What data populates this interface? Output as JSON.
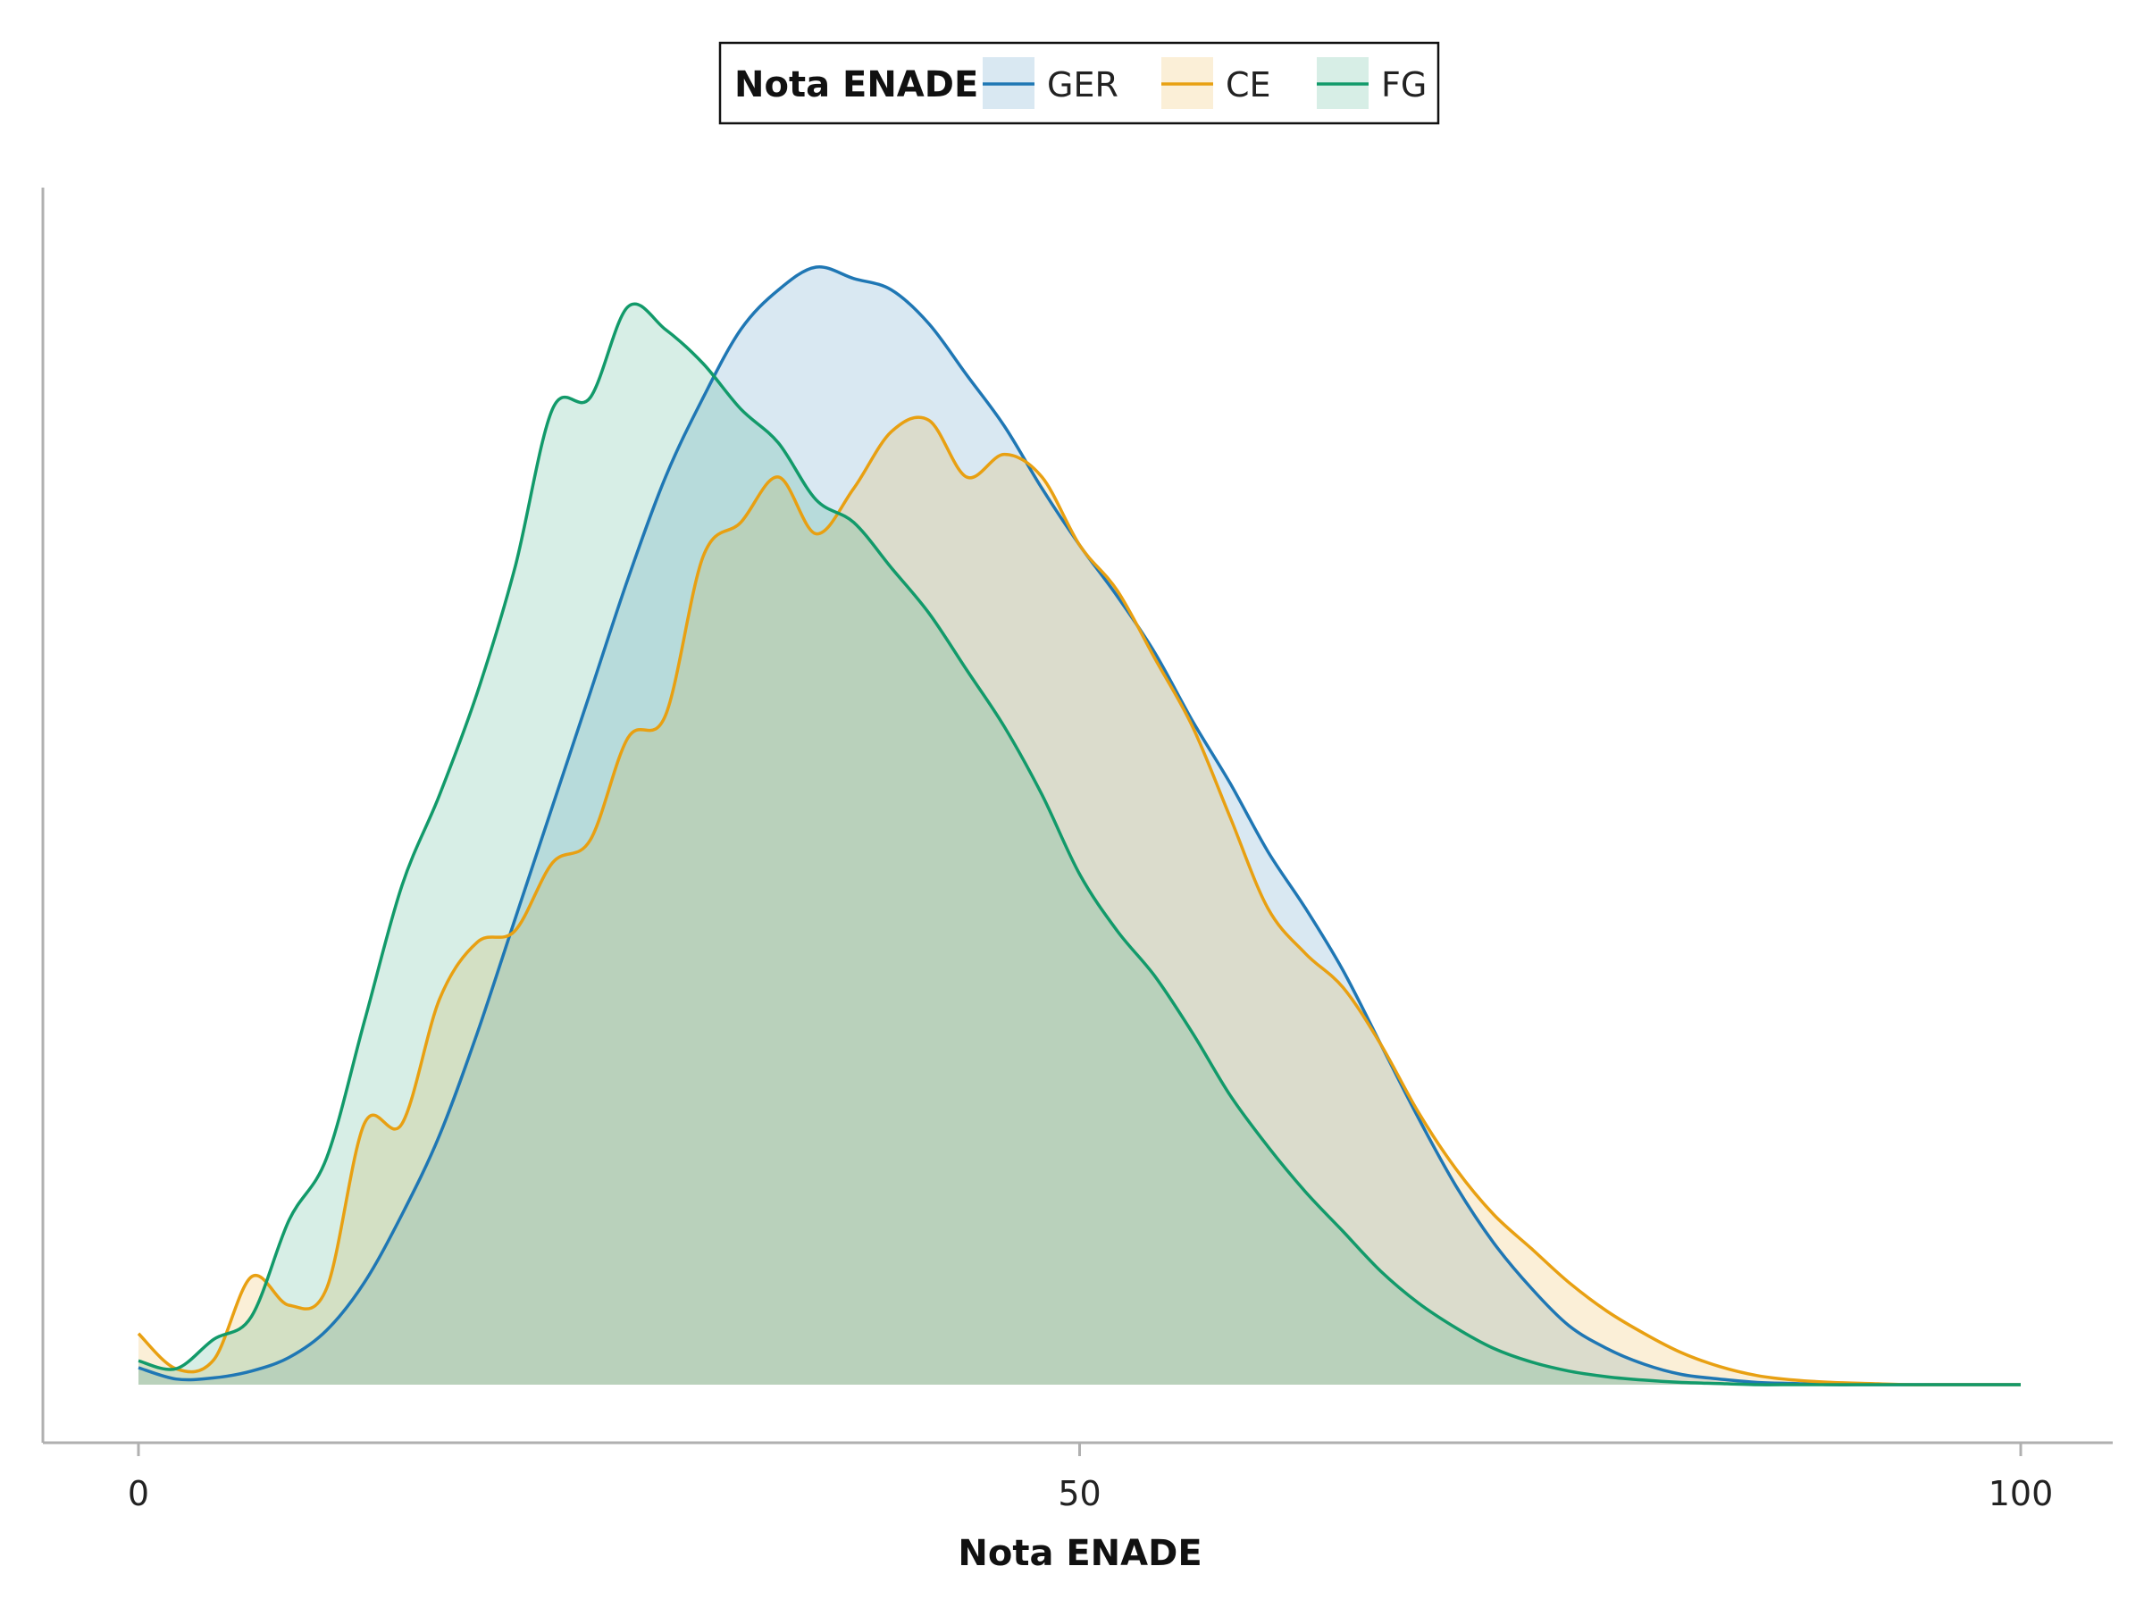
{
  "chart_data": {
    "type": "area",
    "title": "",
    "xlabel": "Nota ENADE",
    "ylabel": "",
    "xlim": [
      0,
      100
    ],
    "xticks": [
      0,
      50,
      100
    ],
    "ylim": [
      0,
      1.0
    ],
    "grid": false,
    "legend": {
      "title": "Nota ENADE",
      "position": "top-center"
    },
    "series": [
      {
        "name": "GER",
        "color": "#1f77b4",
        "fill": "rgba(31,119,180,0.17)",
        "fill_opacity": 0.17,
        "x": [
          0,
          2,
          4,
          6,
          8,
          10,
          12,
          14,
          16,
          18,
          20,
          22,
          24,
          26,
          28,
          30,
          32,
          34,
          36,
          38,
          40,
          42,
          44,
          46,
          48,
          50,
          52,
          54,
          56,
          58,
          60,
          62,
          64,
          66,
          68,
          70,
          72,
          74,
          76,
          78,
          80,
          82,
          84,
          86,
          88,
          90,
          92,
          94,
          96,
          98,
          100
        ],
        "y": [
          0.015,
          0.005,
          0.006,
          0.012,
          0.024,
          0.048,
          0.09,
          0.15,
          0.22,
          0.31,
          0.41,
          0.51,
          0.61,
          0.71,
          0.8,
          0.87,
          0.93,
          0.965,
          0.985,
          0.975,
          0.965,
          0.935,
          0.89,
          0.845,
          0.79,
          0.74,
          0.695,
          0.645,
          0.585,
          0.53,
          0.47,
          0.42,
          0.365,
          0.3,
          0.235,
          0.175,
          0.125,
          0.085,
          0.052,
          0.032,
          0.018,
          0.009,
          0.005,
          0.002,
          0.001,
          0.0,
          0.0,
          0.0,
          0.0,
          0.0,
          0.0
        ]
      },
      {
        "name": "CE",
        "color": "#e8a012",
        "fill": "rgba(232,160,18,0.17)",
        "fill_opacity": 0.17,
        "x": [
          0,
          2,
          4,
          6,
          8,
          10,
          12,
          14,
          16,
          18,
          20,
          22,
          24,
          26,
          28,
          30,
          32,
          34,
          36,
          38,
          40,
          42,
          44,
          46,
          48,
          50,
          52,
          54,
          56,
          58,
          60,
          62,
          64,
          66,
          68,
          70,
          72,
          74,
          76,
          78,
          80,
          82,
          84,
          86,
          88,
          90,
          92,
          94,
          96,
          98,
          100
        ],
        "y": [
          0.045,
          0.014,
          0.022,
          0.095,
          0.07,
          0.085,
          0.23,
          0.23,
          0.34,
          0.39,
          0.4,
          0.46,
          0.48,
          0.57,
          0.59,
          0.73,
          0.76,
          0.8,
          0.75,
          0.79,
          0.84,
          0.85,
          0.8,
          0.82,
          0.8,
          0.74,
          0.7,
          0.64,
          0.58,
          0.5,
          0.42,
          0.38,
          0.35,
          0.3,
          0.24,
          0.19,
          0.15,
          0.12,
          0.09,
          0.065,
          0.045,
          0.028,
          0.016,
          0.008,
          0.004,
          0.002,
          0.001,
          0.0,
          0.0,
          0.0,
          0.0
        ]
      },
      {
        "name": "FG",
        "color": "#129a6a",
        "fill": "rgba(18,154,106,0.17)",
        "fill_opacity": 0.17,
        "x": [
          0,
          2,
          4,
          6,
          8,
          10,
          12,
          14,
          16,
          18,
          20,
          22,
          24,
          26,
          28,
          30,
          32,
          34,
          36,
          38,
          40,
          42,
          44,
          46,
          48,
          50,
          52,
          54,
          56,
          58,
          60,
          62,
          64,
          66,
          68,
          70,
          72,
          74,
          76,
          78,
          80,
          82,
          84,
          86,
          88,
          90,
          92,
          94,
          96,
          98,
          100
        ],
        "y": [
          0.021,
          0.014,
          0.04,
          0.06,
          0.145,
          0.2,
          0.32,
          0.44,
          0.52,
          0.61,
          0.72,
          0.86,
          0.87,
          0.95,
          0.93,
          0.9,
          0.86,
          0.83,
          0.78,
          0.76,
          0.72,
          0.68,
          0.63,
          0.58,
          0.52,
          0.45,
          0.4,
          0.36,
          0.31,
          0.255,
          0.21,
          0.17,
          0.135,
          0.1,
          0.072,
          0.05,
          0.032,
          0.02,
          0.012,
          0.007,
          0.004,
          0.002,
          0.001,
          0.0,
          0.0,
          0.0,
          0.0,
          0.0,
          0.0,
          0.0,
          0.0
        ]
      }
    ]
  }
}
